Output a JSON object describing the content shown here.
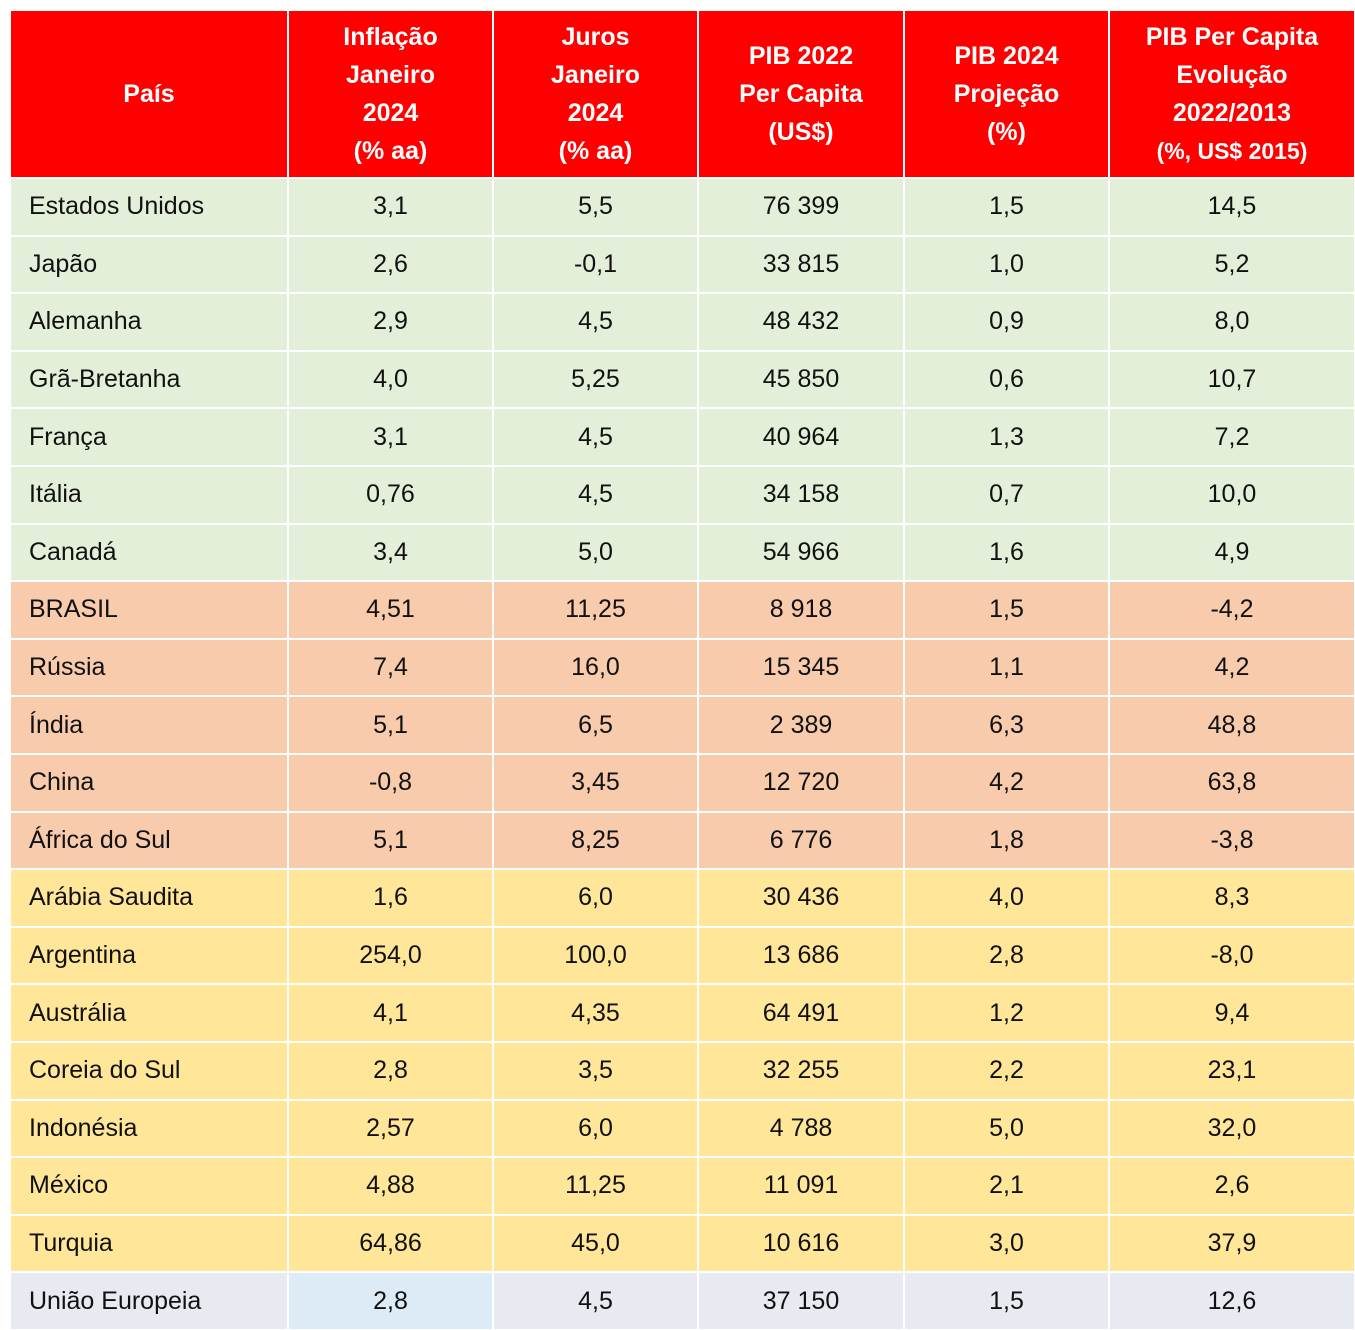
{
  "table": {
    "headers": [
      [
        "País"
      ],
      [
        "Inflação",
        "Janeiro",
        "2024",
        "(% aa)"
      ],
      [
        "Juros",
        "Janeiro",
        "2024",
        "(% aa)"
      ],
      [
        "PIB 2022",
        "Per Capita",
        "(US$)"
      ],
      [
        "PIB 2024",
        "Projeção",
        "(%)"
      ],
      [
        "PIB Per Capita",
        "Evolução",
        "2022/2013",
        "(%, US$ 2015)"
      ]
    ],
    "rows": [
      [
        "Estados Unidos",
        "3,1",
        "5,5",
        "76 399",
        "1,5",
        "14,5"
      ],
      [
        "Japão",
        "2,6",
        "-0,1",
        "33 815",
        "1,0",
        "5,2"
      ],
      [
        "Alemanha",
        "2,9",
        "4,5",
        "48 432",
        "0,9",
        "8,0"
      ],
      [
        "Grã-Bretanha",
        "4,0",
        "5,25",
        "45 850",
        "0,6",
        "10,7"
      ],
      [
        "França",
        "3,1",
        "4,5",
        "40 964",
        "1,3",
        "7,2"
      ],
      [
        "Itália",
        "0,76",
        "4,5",
        "34 158",
        "0,7",
        "10,0"
      ],
      [
        "Canadá",
        "3,4",
        "5,0",
        "54 966",
        "1,6",
        "4,9"
      ],
      [
        "BRASIL",
        "4,51",
        "11,25",
        "8 918",
        "1,5",
        "-4,2"
      ],
      [
        "Rússia",
        "7,4",
        "16,0",
        "15 345",
        "1,1",
        "4,2"
      ],
      [
        "Índia",
        "5,1",
        "6,5",
        "2 389",
        "6,3",
        "48,8"
      ],
      [
        "China",
        "-0,8",
        "3,45",
        "12 720",
        "4,2",
        "63,8"
      ],
      [
        "África do Sul",
        "5,1",
        "8,25",
        "6 776",
        "1,8",
        "-3,8"
      ],
      [
        "Arábia Saudita",
        "1,6",
        "6,0",
        "30 436",
        "4,0",
        "8,3"
      ],
      [
        "Argentina",
        "254,0",
        "100,0",
        "13 686",
        "2,8",
        "-8,0"
      ],
      [
        "Austrália",
        "4,1",
        "4,35",
        "64 491",
        "1,2",
        "9,4"
      ],
      [
        "Coreia do Sul",
        "2,8",
        "3,5",
        "32 255",
        "2,2",
        "23,1"
      ],
      [
        "Indonésia",
        "2,57",
        "6,0",
        "4 788",
        "5,0",
        "32,0"
      ],
      [
        "México",
        "4,88",
        "11,25",
        "11 091",
        "2,1",
        "2,6"
      ],
      [
        "Turquia",
        "64,86",
        "45,0",
        "10 616",
        "3,0",
        "37,9"
      ],
      [
        "União Europeia",
        "2,8",
        "4,5",
        "37 150",
        "1,5",
        "12,6"
      ]
    ],
    "row_colors": [
      "#e3efd9",
      "#e3efd9",
      "#e3efd9",
      "#e3efd9",
      "#e3efd9",
      "#e3efd9",
      "#e3efd9",
      "#f8cbad",
      "#f8cbad",
      "#f8cbad",
      "#f8cbad",
      "#f8cbad",
      "#ffe699",
      "#ffe699",
      "#ffe699",
      "#ffe699",
      "#ffe699",
      "#ffe699",
      "#ffe699",
      "#e8eaf2"
    ]
  }
}
